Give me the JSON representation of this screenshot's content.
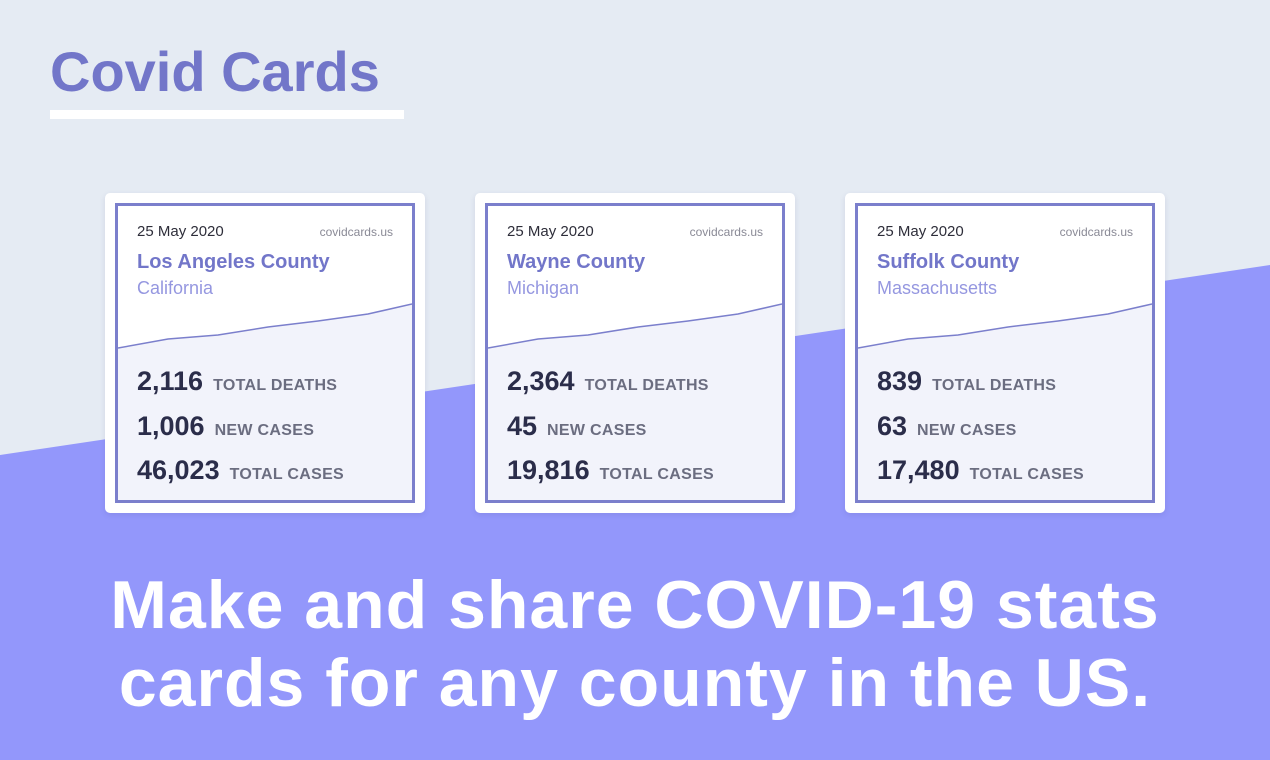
{
  "header": {
    "title": "Covid Cards"
  },
  "cards": [
    {
      "date": "25 May 2020",
      "site": "covidcards.us",
      "county": "Los Angeles County",
      "state": "California",
      "stats": [
        {
          "value": "2,116",
          "label": "TOTAL DEATHS"
        },
        {
          "value": "1,006",
          "label": "NEW CASES"
        },
        {
          "value": "46,023",
          "label": "TOTAL CASES"
        }
      ]
    },
    {
      "date": "25 May 2020",
      "site": "covidcards.us",
      "county": "Wayne County",
      "state": "Michigan",
      "stats": [
        {
          "value": "2,364",
          "label": "TOTAL DEATHS"
        },
        {
          "value": "45",
          "label": "NEW CASES"
        },
        {
          "value": "19,816",
          "label": "TOTAL CASES"
        }
      ]
    },
    {
      "date": "25 May 2020",
      "site": "covidcards.us",
      "county": "Suffolk County",
      "state": "Massachusetts",
      "stats": [
        {
          "value": "839",
          "label": "TOTAL DEATHS"
        },
        {
          "value": "63",
          "label": "NEW CASES"
        },
        {
          "value": "17,480",
          "label": "TOTAL CASES"
        }
      ]
    }
  ],
  "tagline": {
    "lines": [
      "Make and share COVID-19 stats",
      "cards for any county in the US."
    ]
  }
}
